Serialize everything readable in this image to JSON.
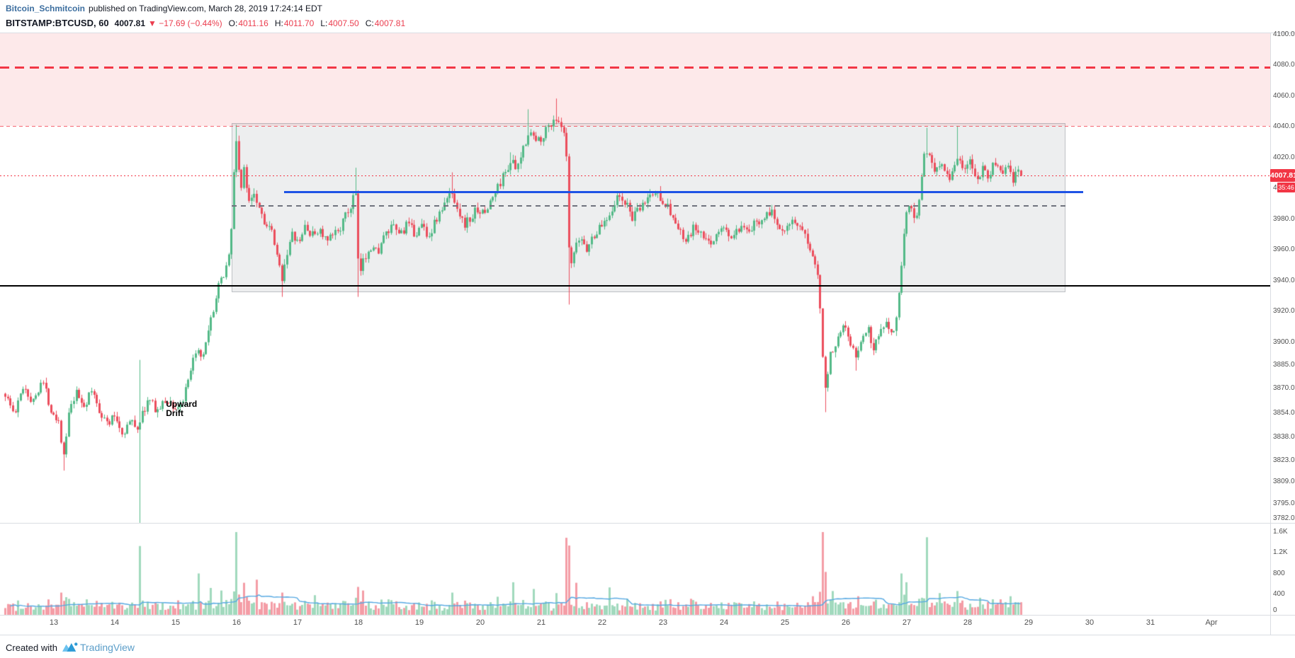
{
  "header": {
    "author": "Bitcoin_Schmitcoin",
    "published": "published on TradingView.com, March 28, 2019 17:24:14 EDT",
    "symbol": "BITSTAMP:BTCUSD, 60",
    "last_price": "4007.81",
    "change": "▼ −17.69 (−0.44%)",
    "ohlc": [
      {
        "label": "O:",
        "value": "4011.16"
      },
      {
        "label": "H:",
        "value": "4011.70"
      },
      {
        "label": "L:",
        "value": "4007.50"
      },
      {
        "label": "C:",
        "value": "4007.81"
      }
    ]
  },
  "footer": {
    "created_with": "Created with",
    "brand": "TradingView"
  },
  "price_axis": {
    "labels": [
      "4100.00",
      "4080.00",
      "4060.00",
      "4040.00",
      "4020.00",
      "4000.00",
      "3980.00",
      "3960.00",
      "3940.00",
      "3920.00",
      "3900.00",
      "3885.00",
      "3870.00",
      "3854.00",
      "3838.00",
      "3823.00",
      "3809.00",
      "3795.00",
      "3782.00"
    ],
    "badge_price": "4007.81",
    "countdown": "35:46"
  },
  "time_axis": {
    "labels": [
      "13",
      "14",
      "15",
      "16",
      "17",
      "18",
      "19",
      "20",
      "21",
      "22",
      "23",
      "24",
      "25",
      "26",
      "27",
      "28",
      "29",
      "30",
      "31",
      "Apr"
    ]
  },
  "volume_axis": {
    "labels": [
      "1.6K",
      "1.2K",
      "800",
      "400",
      "0"
    ]
  },
  "colors": {
    "up": "#53b987",
    "down": "#eb4d5c",
    "volume_up": "rgba(83,185,135,0.55)",
    "volume_down": "rgba(235,77,92,0.55)",
    "volume_ma": "#55a8e2",
    "accent_red": "#f23645",
    "blue_line": "#1e53e5",
    "zone_fill": "rgba(242,84,91,0.13)",
    "box_fill": "rgba(110,115,125,0.12)",
    "box_border": "rgba(120,125,135,0.4)"
  },
  "chart_data": {
    "type": "candlestick",
    "symbol": "BITSTAMP:BTCUSD",
    "interval_minutes": 60,
    "scale": "linear",
    "x_unit": "day-of-march-2019",
    "x_range": [
      12.2,
      28.89
    ],
    "price_axis_range": [
      3782,
      4100
    ],
    "last": {
      "open": 4011.16,
      "high": 4011.7,
      "low": 4007.5,
      "close": 4007.81
    },
    "annotation": {
      "line1": "Upward",
      "line2": "Drift",
      "day": 14.84,
      "price": 3862
    },
    "drawings": {
      "supply_zone": {
        "price_top": 4100,
        "price_bottom": 4040,
        "full_width": true
      },
      "major_resistance": {
        "price": 4078,
        "style": "dashed-bold",
        "color": "#f23645"
      },
      "zone_boundary": {
        "price": 4040,
        "style": "dashed",
        "color": "#f23645"
      },
      "range_box": {
        "day_start": 15.92,
        "day_end": 29.61,
        "price_top": 4042,
        "price_bottom": 3932
      },
      "mid_line_blue": {
        "price": 3997,
        "day_start": 16.78,
        "day_end": 29.9
      },
      "mid_line_dashed": {
        "price": 3988,
        "day_start": 15.92,
        "day_end": 29.61
      },
      "support_line": {
        "price": 3936,
        "full_width": true,
        "color": "#000000"
      },
      "last_price_line": {
        "price": 4007.81,
        "style": "dotted",
        "color": "#f23645"
      }
    },
    "price_path": [
      [
        12.2,
        3866
      ],
      [
        12.35,
        3852
      ],
      [
        12.5,
        3872
      ],
      [
        12.65,
        3860
      ],
      [
        12.8,
        3876
      ],
      [
        12.95,
        3856
      ],
      [
        13.08,
        3848
      ],
      [
        13.16,
        3824
      ],
      [
        13.24,
        3852
      ],
      [
        13.36,
        3866
      ],
      [
        13.5,
        3858
      ],
      [
        13.62,
        3868
      ],
      [
        13.75,
        3855
      ],
      [
        13.88,
        3846
      ],
      [
        14.0,
        3852
      ],
      [
        14.12,
        3840
      ],
      [
        14.25,
        3848
      ],
      [
        14.38,
        3844
      ],
      [
        14.42,
        3850
      ],
      [
        14.55,
        3862
      ],
      [
        14.7,
        3855
      ],
      [
        14.85,
        3862
      ],
      [
        15.0,
        3856
      ],
      [
        15.12,
        3862
      ],
      [
        15.25,
        3880
      ],
      [
        15.33,
        3896
      ],
      [
        15.42,
        3886
      ],
      [
        15.52,
        3902
      ],
      [
        15.62,
        3922
      ],
      [
        15.72,
        3938
      ],
      [
        15.82,
        3948
      ],
      [
        15.9,
        3965
      ],
      [
        15.96,
        4018
      ],
      [
        16.0,
        4034
      ],
      [
        16.06,
        3996
      ],
      [
        16.12,
        4012
      ],
      [
        16.18,
        3992
      ],
      [
        16.28,
        3998
      ],
      [
        16.38,
        3986
      ],
      [
        16.48,
        3976
      ],
      [
        16.58,
        3970
      ],
      [
        16.68,
        3950
      ],
      [
        16.74,
        3942
      ],
      [
        16.82,
        3958
      ],
      [
        16.92,
        3970
      ],
      [
        17.02,
        3962
      ],
      [
        17.12,
        3976
      ],
      [
        17.22,
        3968
      ],
      [
        17.35,
        3973
      ],
      [
        17.48,
        3964
      ],
      [
        17.6,
        3970
      ],
      [
        17.72,
        3976
      ],
      [
        17.82,
        3984
      ],
      [
        17.9,
        3990
      ],
      [
        17.94,
        4006
      ],
      [
        18.0,
        3942
      ],
      [
        18.08,
        3952
      ],
      [
        18.18,
        3963
      ],
      [
        18.3,
        3958
      ],
      [
        18.42,
        3968
      ],
      [
        18.55,
        3974
      ],
      [
        18.68,
        3970
      ],
      [
        18.8,
        3976
      ],
      [
        18.92,
        3970
      ],
      [
        19.05,
        3976
      ],
      [
        19.15,
        3968
      ],
      [
        19.28,
        3980
      ],
      [
        19.4,
        3988
      ],
      [
        19.52,
        3998
      ],
      [
        19.62,
        3988
      ],
      [
        19.72,
        3976
      ],
      [
        19.85,
        3980
      ],
      [
        19.95,
        3987
      ],
      [
        20.05,
        3982
      ],
      [
        20.15,
        3990
      ],
      [
        20.28,
        4000
      ],
      [
        20.4,
        4010
      ],
      [
        20.5,
        4018
      ],
      [
        20.6,
        4010
      ],
      [
        20.7,
        4026
      ],
      [
        20.8,
        4038
      ],
      [
        20.9,
        4030
      ],
      [
        21.0,
        4033
      ],
      [
        21.12,
        4040
      ],
      [
        21.22,
        4046
      ],
      [
        21.32,
        4038
      ],
      [
        21.4,
        4031
      ],
      [
        21.46,
        3944
      ],
      [
        21.54,
        3958
      ],
      [
        21.64,
        3968
      ],
      [
        21.74,
        3960
      ],
      [
        21.86,
        3969
      ],
      [
        22.0,
        3976
      ],
      [
        22.12,
        3984
      ],
      [
        22.25,
        3994
      ],
      [
        22.38,
        3990
      ],
      [
        22.5,
        3980
      ],
      [
        22.62,
        3986
      ],
      [
        22.75,
        3994
      ],
      [
        22.88,
        3997
      ],
      [
        23.0,
        3992
      ],
      [
        23.12,
        3984
      ],
      [
        23.25,
        3972
      ],
      [
        23.38,
        3964
      ],
      [
        23.5,
        3974
      ],
      [
        23.62,
        3969
      ],
      [
        23.75,
        3963
      ],
      [
        23.88,
        3970
      ],
      [
        24.0,
        3974
      ],
      [
        24.12,
        3967
      ],
      [
        24.25,
        3973
      ],
      [
        24.38,
        3970
      ],
      [
        24.5,
        3976
      ],
      [
        24.62,
        3981
      ],
      [
        24.75,
        3985
      ],
      [
        24.85,
        3978
      ],
      [
        24.95,
        3973
      ],
      [
        25.08,
        3979
      ],
      [
        25.2,
        3974
      ],
      [
        25.32,
        3968
      ],
      [
        25.45,
        3958
      ],
      [
        25.55,
        3944
      ],
      [
        25.6,
        3898
      ],
      [
        25.66,
        3872
      ],
      [
        25.75,
        3892
      ],
      [
        25.85,
        3902
      ],
      [
        25.95,
        3913
      ],
      [
        26.05,
        3904
      ],
      [
        26.15,
        3888
      ],
      [
        26.25,
        3901
      ],
      [
        26.35,
        3909
      ],
      [
        26.45,
        3896
      ],
      [
        26.55,
        3906
      ],
      [
        26.65,
        3914
      ],
      [
        26.75,
        3906
      ],
      [
        26.82,
        3913
      ],
      [
        26.9,
        3942
      ],
      [
        26.98,
        3982
      ],
      [
        27.06,
        3990
      ],
      [
        27.14,
        3979
      ],
      [
        27.22,
        3998
      ],
      [
        27.3,
        4028
      ],
      [
        27.38,
        4018
      ],
      [
        27.46,
        4010
      ],
      [
        27.55,
        4018
      ],
      [
        27.64,
        4011
      ],
      [
        27.72,
        4007
      ],
      [
        27.84,
        4021
      ],
      [
        27.94,
        4011
      ],
      [
        28.04,
        4016
      ],
      [
        28.14,
        4005
      ],
      [
        28.24,
        4013
      ],
      [
        28.34,
        4008
      ],
      [
        28.44,
        4016
      ],
      [
        28.54,
        4010
      ],
      [
        28.64,
        4013
      ],
      [
        28.74,
        4005
      ],
      [
        28.82,
        4011
      ],
      [
        28.89,
        4007.81
      ]
    ],
    "wick_events": [
      {
        "day": 13.16,
        "low": 3816
      },
      {
        "day": 14.4,
        "high": 3888,
        "low": 3782
      },
      {
        "day": 15.98,
        "high": 4041
      },
      {
        "day": 16.74,
        "low": 3929
      },
      {
        "day": 17.94,
        "high": 4013
      },
      {
        "day": 18.0,
        "low": 3929
      },
      {
        "day": 19.52,
        "high": 4010
      },
      {
        "day": 20.5,
        "high": 4023
      },
      {
        "day": 20.78,
        "high": 4051
      },
      {
        "day": 21.24,
        "high": 4058
      },
      {
        "day": 21.46,
        "low": 3924
      },
      {
        "day": 25.66,
        "low": 3854
      },
      {
        "day": 26.15,
        "low": 3881
      },
      {
        "day": 27.32,
        "high": 4039
      },
      {
        "day": 27.84,
        "high": 4040
      }
    ],
    "volume": {
      "max_scale": 1600,
      "spikes": [
        [
          13.1,
          430,
          "down"
        ],
        [
          13.55,
          300,
          "up"
        ],
        [
          14.4,
          1330,
          "up"
        ],
        [
          15.05,
          280,
          "down"
        ],
        [
          15.38,
          800,
          "up"
        ],
        [
          15.56,
          520,
          "up"
        ],
        [
          15.76,
          470,
          "up"
        ],
        [
          16.0,
          1600,
          "up"
        ],
        [
          16.12,
          620,
          "down"
        ],
        [
          16.33,
          680,
          "down"
        ],
        [
          16.74,
          430,
          "down"
        ],
        [
          17.3,
          380,
          "up"
        ],
        [
          17.94,
          330,
          "up"
        ],
        [
          18.0,
          540,
          "down"
        ],
        [
          18.08,
          470,
          "down"
        ],
        [
          18.5,
          300,
          "up"
        ],
        [
          19.2,
          280,
          "up"
        ],
        [
          19.52,
          430,
          "up"
        ],
        [
          20.3,
          350,
          "up"
        ],
        [
          20.55,
          630,
          "up"
        ],
        [
          20.88,
          500,
          "up"
        ],
        [
          21.24,
          420,
          "up"
        ],
        [
          21.42,
          1490,
          "down"
        ],
        [
          21.46,
          1340,
          "down"
        ],
        [
          21.56,
          620,
          "down"
        ],
        [
          22.12,
          530,
          "up"
        ],
        [
          22.4,
          310,
          "up"
        ],
        [
          23.05,
          290,
          "up"
        ],
        [
          23.45,
          310,
          "down"
        ],
        [
          24.5,
          260,
          "up"
        ],
        [
          25.45,
          360,
          "down"
        ],
        [
          25.62,
          1600,
          "down"
        ],
        [
          25.66,
          830,
          "down"
        ],
        [
          25.8,
          460,
          "up"
        ],
        [
          26.18,
          360,
          "down"
        ],
        [
          26.9,
          800,
          "up"
        ],
        [
          26.98,
          630,
          "up"
        ],
        [
          27.34,
          1500,
          "up"
        ],
        [
          27.52,
          420,
          "up"
        ],
        [
          27.84,
          460,
          "up"
        ],
        [
          28.2,
          330,
          "up"
        ],
        [
          28.55,
          300,
          "down"
        ],
        [
          28.72,
          360,
          "up"
        ]
      ]
    }
  }
}
